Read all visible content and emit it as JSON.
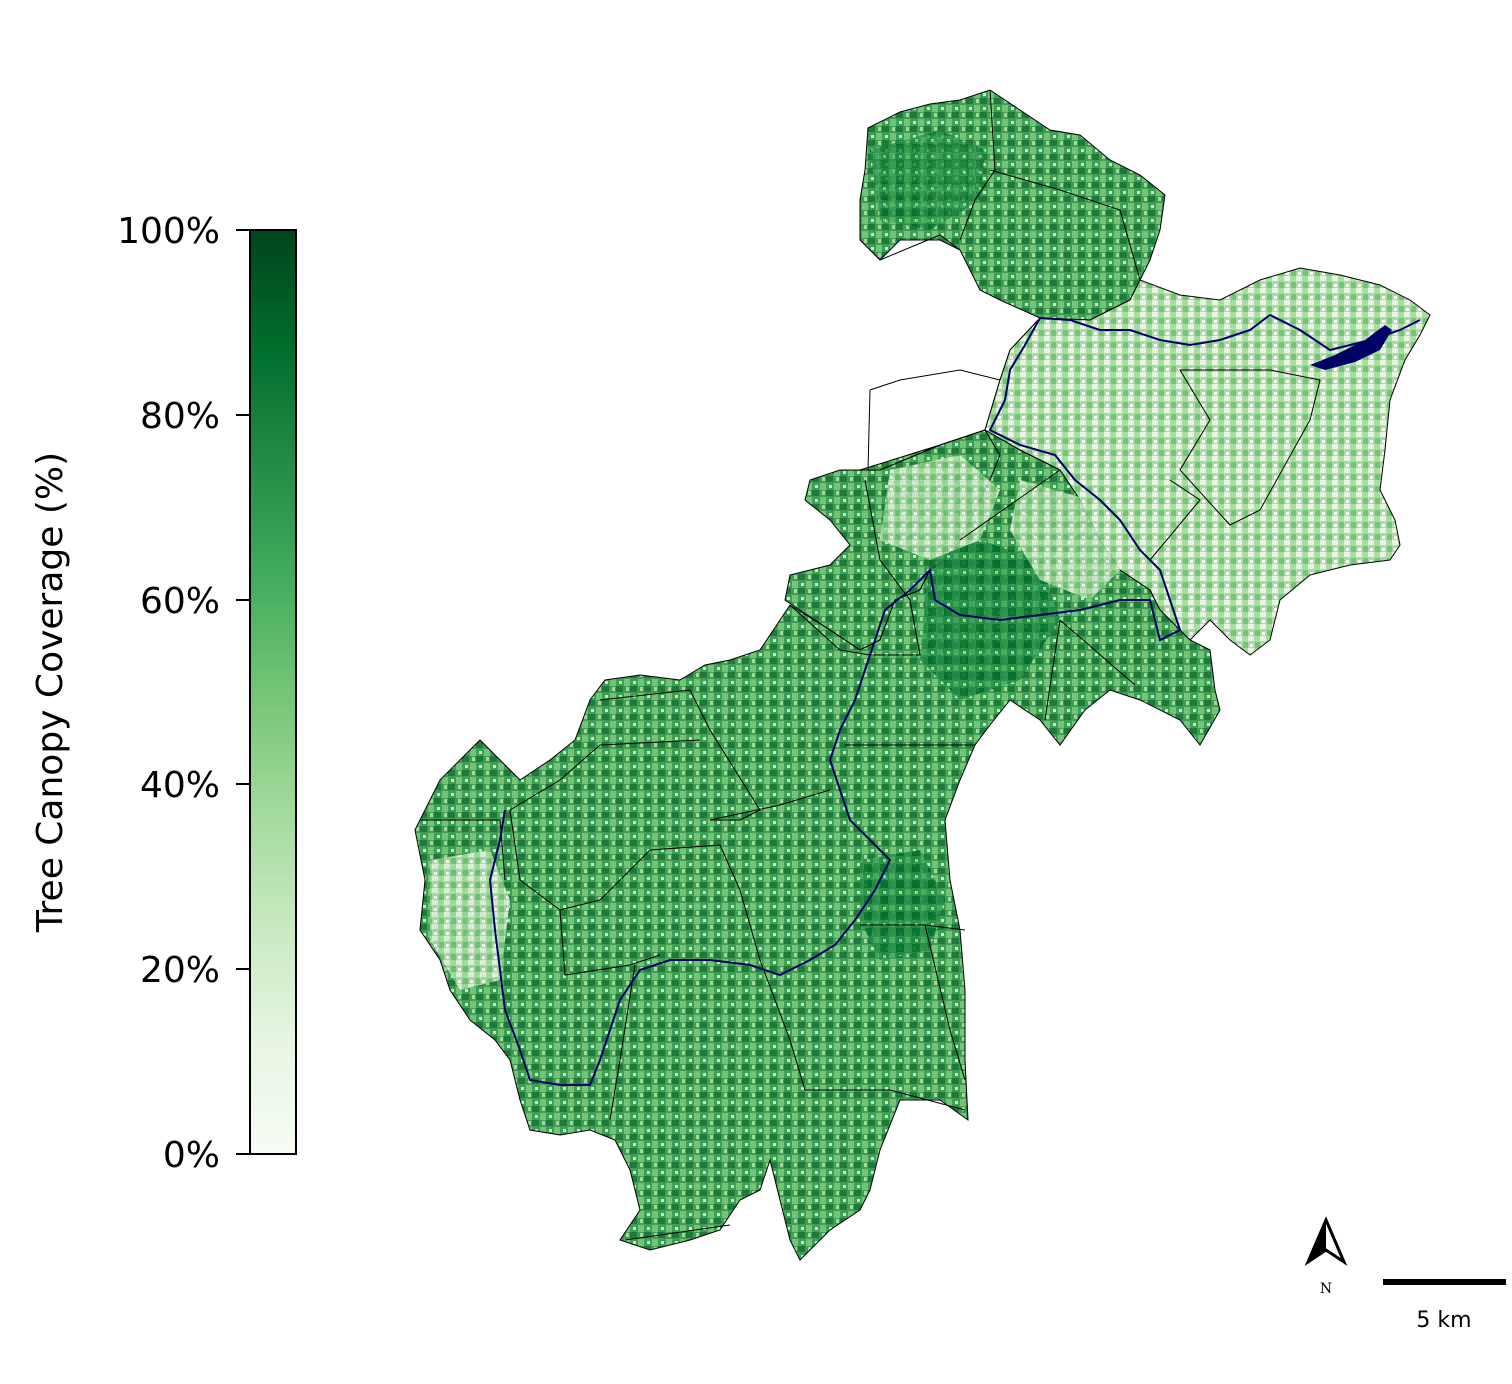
{
  "legend": {
    "title": "Tree Canopy Coverage (%)",
    "ticks": [
      "100%",
      "80%",
      "60%",
      "40%",
      "20%",
      "0%"
    ],
    "colormap": [
      "#f7fcf5",
      "#e5f5e0",
      "#c7e9c0",
      "#a1d99b",
      "#74c476",
      "#41ab5d",
      "#238b45",
      "#006d2c",
      "#00441b"
    ]
  },
  "map": {
    "river_color": "#000066",
    "boundary_color": "#000000"
  },
  "north_arrow": {
    "label": "N"
  },
  "scale_bar": {
    "label": "5 km"
  }
}
